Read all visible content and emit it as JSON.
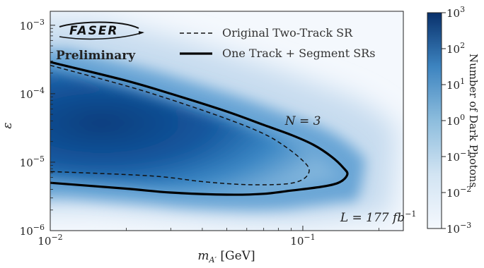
{
  "chart_data": {
    "type": "heatmap",
    "xlabel": "m_{A'} [GeV]",
    "ylabel": "ε",
    "x_scale": "log",
    "y_scale": "log",
    "xlim": [
      0.01,
      0.25
    ],
    "ylim": [
      1e-06,
      0.0016
    ],
    "x_ticks": [
      0.01,
      0.1
    ],
    "x_tick_labels": [
      "10",
      "10"
    ],
    "x_tick_exponents": [
      "−2",
      "−1"
    ],
    "y_ticks": [
      1e-06,
      1e-05,
      0.0001,
      0.001
    ],
    "y_tick_labels": [
      "10",
      "10",
      "10",
      "10"
    ],
    "y_tick_exponents": [
      "−6",
      "−5",
      "−4",
      "−3"
    ],
    "colorbar": {
      "label": "Number of Dark Photons",
      "scale": "log",
      "range": [
        0.001,
        1000
      ],
      "ticks": [
        0.001,
        0.01,
        0.1,
        1,
        10,
        100,
        1000
      ],
      "tick_labels": [
        "10",
        "10",
        "10",
        "10",
        "10",
        "10",
        "10"
      ],
      "tick_exponents": [
        "−3",
        "−2",
        "−1",
        "0",
        "1",
        "2",
        "3"
      ],
      "color_low": "#f4f8fd",
      "color_high": "#08306b"
    },
    "series": [
      {
        "name": "Original Two-Track SR",
        "style": "dashed",
        "color": "#111111",
        "upper": [
          [
            0.01,
            0.00026
          ],
          [
            0.02,
            0.00013
          ],
          [
            0.03,
            8.2e-05
          ],
          [
            0.05,
            4.3e-05
          ],
          [
            0.07,
            2.6e-05
          ],
          [
            0.085,
            1.7e-05
          ],
          [
            0.1,
            1.05e-05
          ],
          [
            0.106,
            7.6e-06
          ]
        ],
        "lower": [
          [
            0.106,
            7.6e-06
          ],
          [
            0.1,
            5.6e-06
          ],
          [
            0.085,
            4.8e-06
          ],
          [
            0.06,
            4.7e-06
          ],
          [
            0.04,
            5.2e-06
          ],
          [
            0.025,
            6.3e-06
          ],
          [
            0.01,
            7.3e-06
          ]
        ]
      },
      {
        "name": "One Track + Segment SRs",
        "style": "solid",
        "color": "#000000",
        "upper": [
          [
            0.01,
            0.00029
          ],
          [
            0.02,
            0.000155
          ],
          [
            0.03,
            0.0001
          ],
          [
            0.05,
            5.5e-05
          ],
          [
            0.07,
            3.5e-05
          ],
          [
            0.09,
            2.5e-05
          ],
          [
            0.11,
            1.8e-05
          ],
          [
            0.13,
            1.2e-05
          ],
          [
            0.145,
            8.2e-06
          ],
          [
            0.15,
            6.6e-06
          ]
        ],
        "lower": [
          [
            0.15,
            6.6e-06
          ],
          [
            0.14,
            5.1e-06
          ],
          [
            0.12,
            4.4e-06
          ],
          [
            0.09,
            3.85e-06
          ],
          [
            0.07,
            3.45e-06
          ],
          [
            0.05,
            3.35e-06
          ],
          [
            0.03,
            3.6e-06
          ],
          [
            0.02,
            4.1e-06
          ],
          [
            0.01,
            5e-06
          ]
        ]
      }
    ],
    "annotations": [
      {
        "text": "N = 3",
        "x": 0.085,
        "y": 3.5e-05
      },
      {
        "text": "L = 177 fb",
        "superscript": "−1",
        "x": 0.16,
        "y": 1.5e-06
      }
    ],
    "legend_position": "top-right"
  },
  "branding": {
    "logo_text": "FASER",
    "preliminary": "Preliminary"
  }
}
